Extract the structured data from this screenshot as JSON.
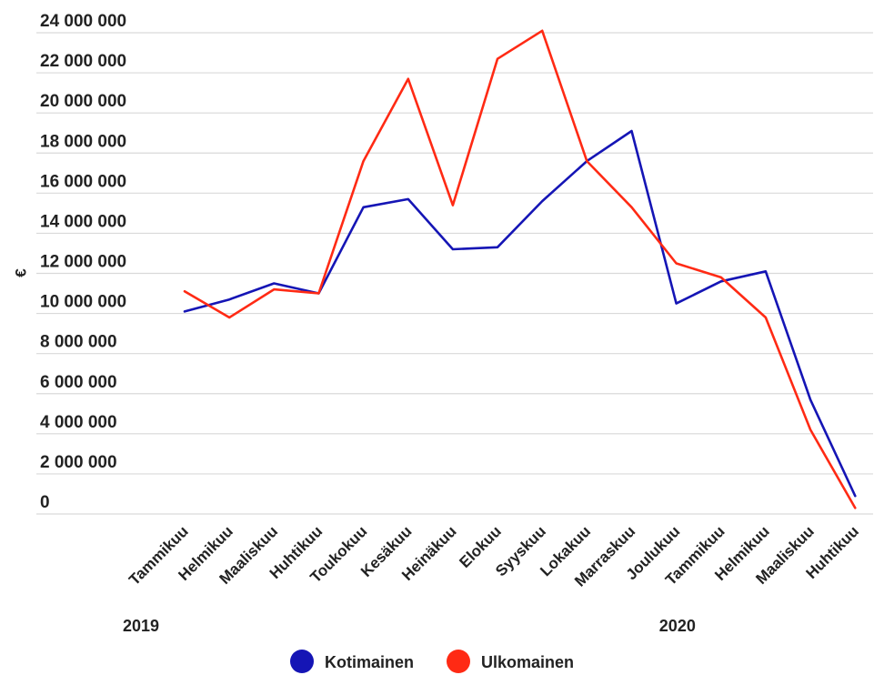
{
  "chart_data": {
    "type": "line",
    "ylabel": "€",
    "ylim": [
      0,
      24000000
    ],
    "yticks": [
      0,
      2000000,
      4000000,
      6000000,
      8000000,
      10000000,
      12000000,
      14000000,
      16000000,
      18000000,
      20000000,
      22000000,
      24000000
    ],
    "ytick_labels": [
      "0",
      "2 000 000",
      "4 000 000",
      "6 000 000",
      "8 000 000",
      "10 000 000",
      "12 000 000",
      "14 000 000",
      "16 000 000",
      "18 000 000",
      "20 000 000",
      "22 000 000",
      "24 000 000"
    ],
    "categories": [
      "Tammikuu",
      "Helmikuu",
      "Maaliskuu",
      "Huhtikuu",
      "Toukokuu",
      "Kesäkuu",
      "Heinäkuu",
      "Elokuu",
      "Syyskuu",
      "Lokakuu",
      "Marraskuu",
      "Joulukuu",
      "Tammikuu",
      "Helmikuu",
      "Maaliskuu",
      "Huhtikuu"
    ],
    "year_labels": [
      {
        "label": "2019",
        "category_index": 0
      },
      {
        "label": "2020",
        "category_index": 12
      }
    ],
    "grid": true,
    "legend_position": "bottom",
    "series": [
      {
        "name": "Kotimainen",
        "color": "#1515b5",
        "values": [
          10100000,
          10700000,
          11500000,
          11000000,
          15300000,
          15700000,
          13200000,
          13300000,
          15600000,
          17600000,
          19100000,
          10500000,
          11600000,
          12100000,
          5700000,
          900000
        ]
      },
      {
        "name": "Ulkomainen",
        "color": "#ff2a14",
        "values": [
          11100000,
          9800000,
          11200000,
          11000000,
          17600000,
          21700000,
          15400000,
          22700000,
          24100000,
          17600000,
          15300000,
          12500000,
          11800000,
          9800000,
          4200000,
          300000
        ]
      }
    ]
  }
}
